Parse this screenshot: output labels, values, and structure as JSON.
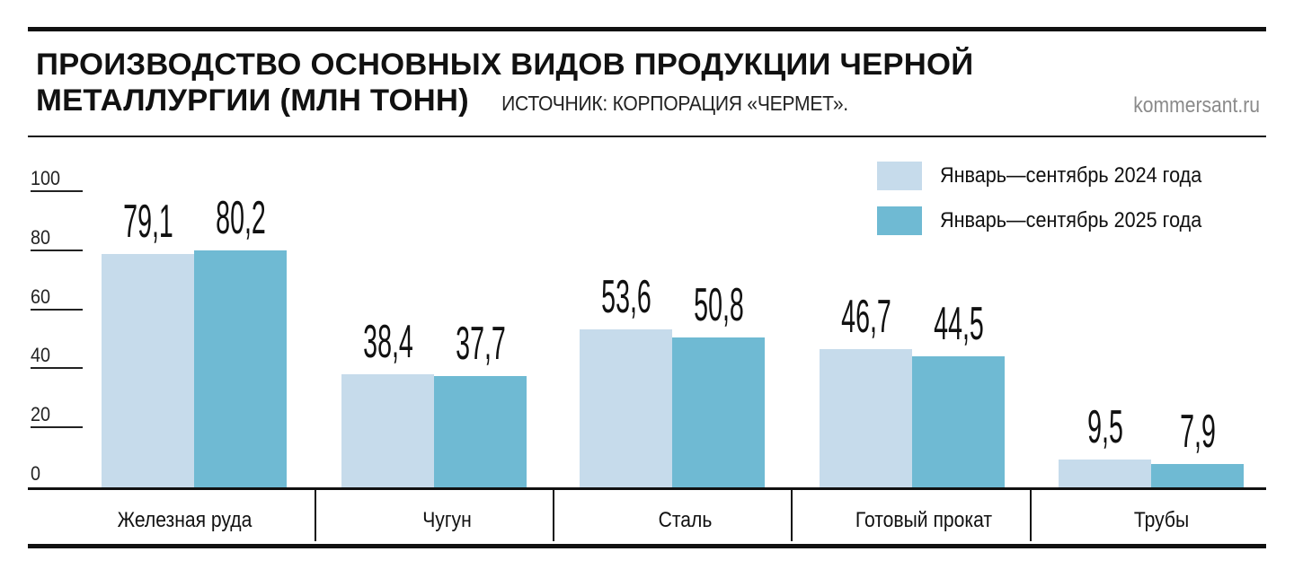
{
  "header": {
    "title_line1": "ПРОИЗВОДСТВО ОСНОВНЫХ ВИДОВ ПРОДУКЦИИ ЧЕРНОЙ",
    "title_line2": "МЕТАЛЛУРГИИ (МЛН ТОНН)",
    "source": "ИСТОЧНИК: КОРПОРАЦИЯ «ЧЕРМЕТ».",
    "site": "kommersant.ru"
  },
  "legend": {
    "items": [
      {
        "label": "Январь—сентябрь 2024 года",
        "color": "#c6dbeb"
      },
      {
        "label": "Январь—сентябрь 2025 года",
        "color": "#6fbad3"
      }
    ]
  },
  "y_ticks": [
    "0",
    "20",
    "40",
    "60",
    "80",
    "100"
  ],
  "categories": [
    "Железная руда",
    "Чугун",
    "Сталь",
    "Готовый прокат",
    "Трубы"
  ],
  "value_labels": {
    "s0": [
      "79,1",
      "38,4",
      "53,6",
      "46,7",
      "9,5"
    ],
    "s1": [
      "80,2",
      "37,7",
      "50,8",
      "44,5",
      "7,9"
    ]
  },
  "chart_data": {
    "type": "bar",
    "title": "Производство основных видов продукции черной металлургии (млн тонн)",
    "subtitle": "Источник: корпорация «Чермет».",
    "categories": [
      "Железная руда",
      "Чугун",
      "Сталь",
      "Готовый прокат",
      "Трубы"
    ],
    "series": [
      {
        "name": "Январь—сентябрь 2024 года",
        "color": "#c6dbeb",
        "values": [
          79.1,
          38.4,
          53.6,
          46.7,
          9.5
        ]
      },
      {
        "name": "Январь—сентябрь 2025 года",
        "color": "#6fbad3",
        "values": [
          80.2,
          37.7,
          50.8,
          44.5,
          7.9
        ]
      }
    ],
    "xlabel": "",
    "ylabel": "млн тонн",
    "ylim": [
      0,
      100
    ],
    "yticks": [
      0,
      20,
      40,
      60,
      80,
      100
    ],
    "grid": false,
    "legend_position": "top-right",
    "data_labels": true
  }
}
